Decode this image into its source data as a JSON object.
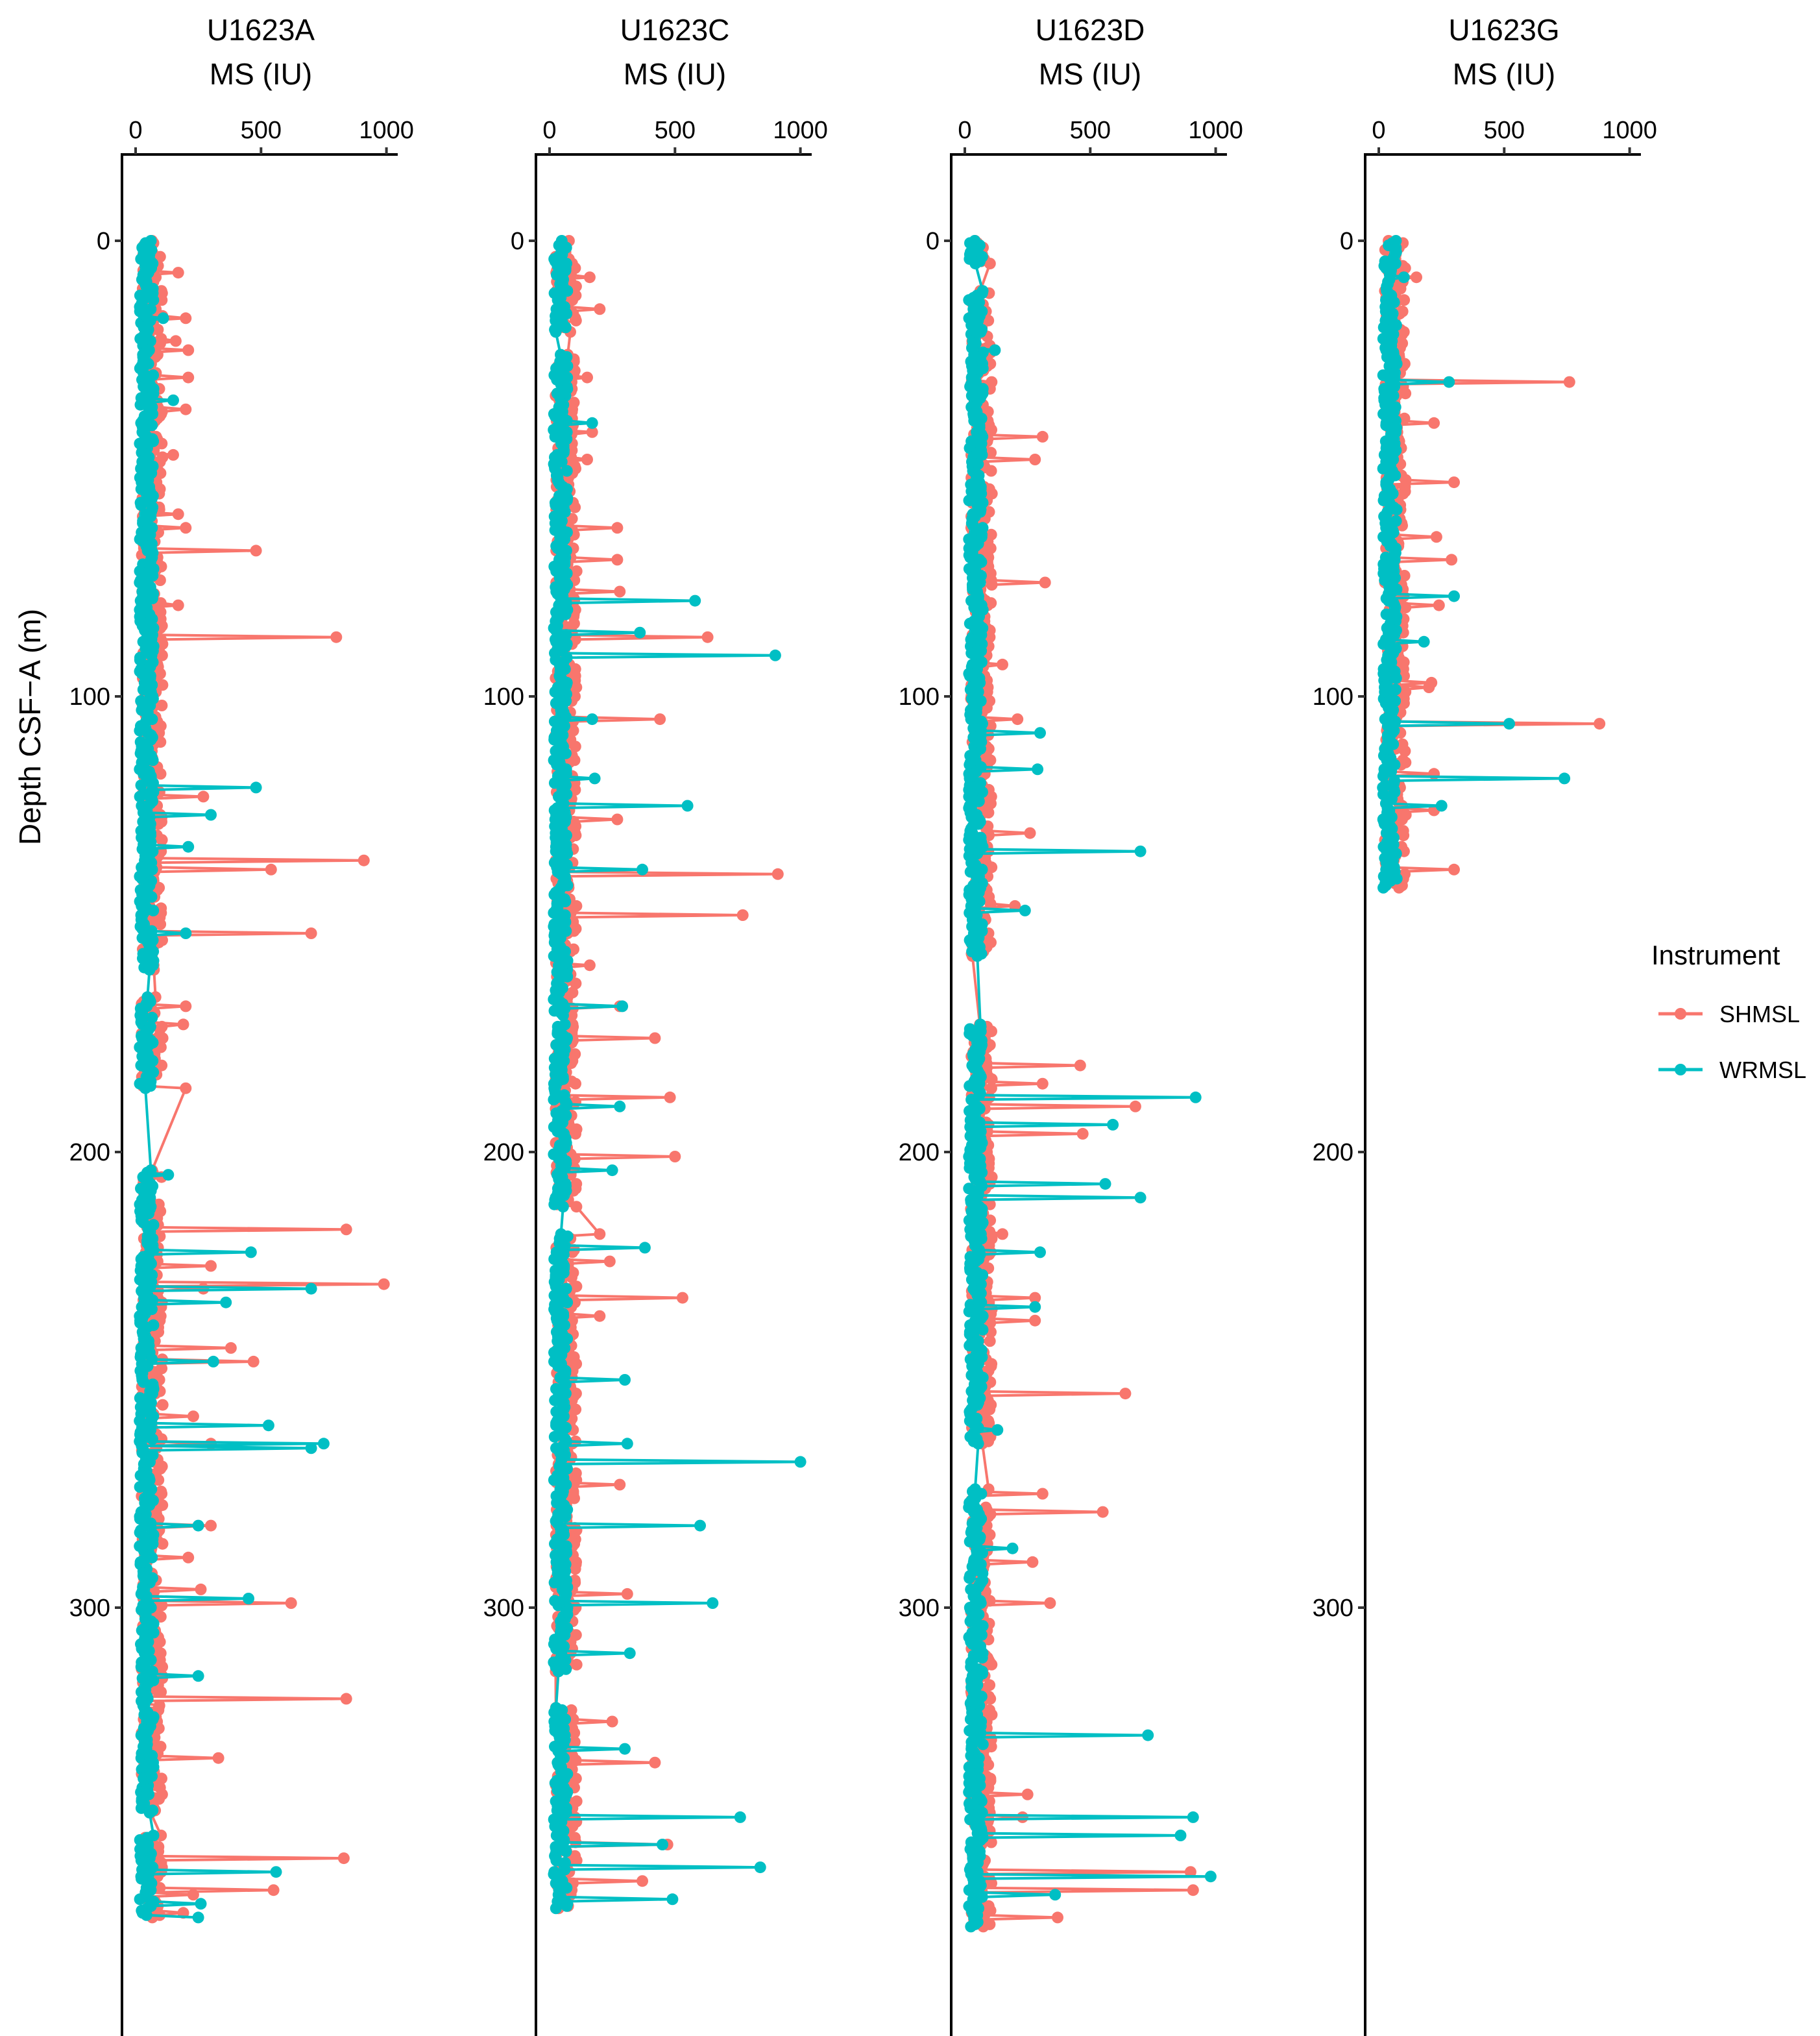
{
  "chart_data": {
    "type": "line",
    "ylabel": "Depth CSF−A (m)",
    "yticks": [
      0,
      100,
      200,
      300
    ],
    "ylim": [
      -20,
      390
    ],
    "y_reversed": true,
    "xticks": [
      0,
      500,
      1000
    ],
    "xlim": [
      -55,
      1030
    ],
    "grid": false,
    "legend": {
      "title": "Instrument",
      "position": "right",
      "entries": [
        {
          "name": "SHMSL",
          "color": "#F8766D"
        },
        {
          "name": "WRMSL",
          "color": "#00BFC4"
        }
      ]
    },
    "panels": [
      {
        "title": "U1623A",
        "xlabel": "MS (IU)",
        "depth_range": [
          0,
          368
        ],
        "baseline": {
          "SHMSL": 60,
          "WRMSL": 40
        },
        "gaps": [
          [
            160,
            166
          ],
          [
            186,
            204
          ],
          [
            345,
            350
          ]
        ],
        "spikes": {
          "SHMSL": [
            [
              7,
              170
            ],
            [
              17,
              200
            ],
            [
              22,
              160
            ],
            [
              24,
              210
            ],
            [
              30,
              210
            ],
            [
              37,
              200
            ],
            [
              47,
              150
            ],
            [
              60,
              170
            ],
            [
              63,
              200
            ],
            [
              68,
              480
            ],
            [
              80,
              170
            ],
            [
              87,
              800
            ],
            [
              87,
              430
            ],
            [
              122,
              270
            ],
            [
              136,
              910
            ],
            [
              138,
              540
            ],
            [
              138,
              420
            ],
            [
              152,
              700
            ],
            [
              152,
              300
            ],
            [
              168,
              200
            ],
            [
              172,
              190
            ],
            [
              186,
              200
            ],
            [
              217,
              840
            ],
            [
              225,
              300
            ],
            [
              229,
              990
            ],
            [
              230,
              270
            ],
            [
              243,
              380
            ],
            [
              246,
              470
            ],
            [
              258,
              230
            ],
            [
              264,
              300
            ],
            [
              282,
              300
            ],
            [
              289,
              210
            ],
            [
              296,
              260
            ],
            [
              299,
              620
            ],
            [
              320,
              840
            ],
            [
              333,
              330
            ],
            [
              348,
              380
            ],
            [
              355,
              560
            ],
            [
              355,
              830
            ],
            [
              362,
              550
            ],
            [
              363,
              230
            ],
            [
              367,
              190
            ]
          ],
          "WRMSL": [
            [
              17,
              110
            ],
            [
              35,
              150
            ],
            [
              120,
              480
            ],
            [
              120,
              420
            ],
            [
              126,
              300
            ],
            [
              133,
              210
            ],
            [
              152,
              200
            ],
            [
              205,
              130
            ],
            [
              222,
              460
            ],
            [
              230,
              700
            ],
            [
              233,
              360
            ],
            [
              246,
              310
            ],
            [
              260,
              530
            ],
            [
              264,
              750
            ],
            [
              265,
              700
            ],
            [
              282,
              250
            ],
            [
              298,
              450
            ],
            [
              298,
              410
            ],
            [
              315,
              250
            ],
            [
              358,
              540
            ],
            [
              358,
              560
            ],
            [
              365,
              260
            ],
            [
              368,
              250
            ]
          ]
        }
      },
      {
        "title": "U1623C",
        "xlabel": "MS (IU)",
        "depth_range": [
          0,
          366
        ],
        "baseline": {
          "SHMSL": 60,
          "WRMSL": 40
        },
        "gaps": [
          [
            20,
            25
          ],
          [
            170,
            172
          ],
          [
            212,
            218
          ],
          [
            314,
            322
          ]
        ],
        "spikes": {
          "SHMSL": [
            [
              8,
              160
            ],
            [
              15,
              200
            ],
            [
              30,
              150
            ],
            [
              42,
              170
            ],
            [
              48,
              150
            ],
            [
              63,
              270
            ],
            [
              70,
              270
            ],
            [
              77,
              280
            ],
            [
              87,
              630
            ],
            [
              105,
              440
            ],
            [
              127,
              270
            ],
            [
              139,
              910
            ],
            [
              139,
              380
            ],
            [
              148,
              770
            ],
            [
              159,
              160
            ],
            [
              168,
              280
            ],
            [
              175,
              420
            ],
            [
              188,
              480
            ],
            [
              201,
              500
            ],
            [
              218,
              200
            ],
            [
              224,
              240
            ],
            [
              232,
              530
            ],
            [
              236,
              200
            ],
            [
              273,
              280
            ],
            [
              297,
              310
            ],
            [
              325,
              250
            ],
            [
              334,
              420
            ],
            [
              352,
              470
            ],
            [
              360,
              370
            ]
          ],
          "WRMSL": [
            [
              40,
              170
            ],
            [
              79,
              300
            ],
            [
              79,
              580
            ],
            [
              86,
              360
            ],
            [
              91,
              900
            ],
            [
              105,
              170
            ],
            [
              118,
              180
            ],
            [
              124,
              510
            ],
            [
              124,
              550
            ],
            [
              138,
              180
            ],
            [
              138,
              370
            ],
            [
              168,
              290
            ],
            [
              190,
              280
            ],
            [
              204,
              250
            ],
            [
              221,
              380
            ],
            [
              250,
              300
            ],
            [
              264,
              310
            ],
            [
              268,
              1000
            ],
            [
              282,
              310
            ],
            [
              282,
              600
            ],
            [
              299,
              650
            ],
            [
              310,
              320
            ],
            [
              331,
              300
            ],
            [
              346,
              760
            ],
            [
              352,
              450
            ],
            [
              357,
              800
            ],
            [
              357,
              840
            ],
            [
              364,
              490
            ]
          ]
        }
      },
      {
        "title": "U1623D",
        "xlabel": "MS (IU)",
        "depth_range": [
          0,
          370
        ],
        "baseline": {
          "SHMSL": 60,
          "WRMSL": 40
        },
        "gaps": [
          [
            5,
            11
          ],
          [
            157,
            172
          ],
          [
            264,
            274
          ]
        ],
        "spikes": {
          "SHMSL": [
            [
              43,
              310
            ],
            [
              48,
              280
            ],
            [
              75,
              320
            ],
            [
              93,
              150
            ],
            [
              105,
              210
            ],
            [
              130,
              260
            ],
            [
              146,
              200
            ],
            [
              181,
              460
            ],
            [
              185,
              310
            ],
            [
              190,
              680
            ],
            [
              196,
              470
            ],
            [
              218,
              150
            ],
            [
              232,
              280
            ],
            [
              237,
              280
            ],
            [
              253,
              640
            ],
            [
              275,
              310
            ],
            [
              279,
              550
            ],
            [
              290,
              270
            ],
            [
              299,
              340
            ],
            [
              341,
              250
            ],
            [
              346,
              230
            ],
            [
              358,
              900
            ],
            [
              362,
              910
            ],
            [
              368,
              370
            ]
          ],
          "WRMSL": [
            [
              24,
              120
            ],
            [
              108,
              300
            ],
            [
              116,
              290
            ],
            [
              134,
              700
            ],
            [
              134,
              640
            ],
            [
              147,
              240
            ],
            [
              188,
              920
            ],
            [
              188,
              890
            ],
            [
              194,
              560
            ],
            [
              194,
              590
            ],
            [
              207,
              560
            ],
            [
              210,
              700
            ],
            [
              222,
              300
            ],
            [
              234,
              280
            ],
            [
              261,
              130
            ],
            [
              287,
              190
            ],
            [
              328,
              730
            ],
            [
              328,
              510
            ],
            [
              346,
              910
            ],
            [
              346,
              900
            ],
            [
              350,
              860
            ],
            [
              359,
              980
            ],
            [
              359,
              560
            ],
            [
              363,
              360
            ]
          ]
        }
      },
      {
        "title": "U1623G",
        "xlabel": "MS (IU)",
        "depth_range": [
          0,
          142
        ],
        "baseline": {
          "SHMSL": 60,
          "WRMSL": 40
        },
        "gaps": [],
        "spikes": {
          "SHMSL": [
            [
              8,
              150
            ],
            [
              31,
              760
            ],
            [
              40,
              220
            ],
            [
              53,
              300
            ],
            [
              65,
              230
            ],
            [
              70,
              290
            ],
            [
              80,
              240
            ],
            [
              97,
              210
            ],
            [
              98,
              200
            ],
            [
              106,
              880
            ],
            [
              117,
              220
            ],
            [
              125,
              220
            ],
            [
              138,
              300
            ]
          ],
          "WRMSL": [
            [
              8,
              100
            ],
            [
              31,
              280
            ],
            [
              78,
              250
            ],
            [
              78,
              300
            ],
            [
              88,
              180
            ],
            [
              106,
              520
            ],
            [
              106,
              320
            ],
            [
              118,
              740
            ],
            [
              118,
              450
            ],
            [
              118,
              390
            ],
            [
              124,
              250
            ]
          ]
        }
      }
    ]
  }
}
